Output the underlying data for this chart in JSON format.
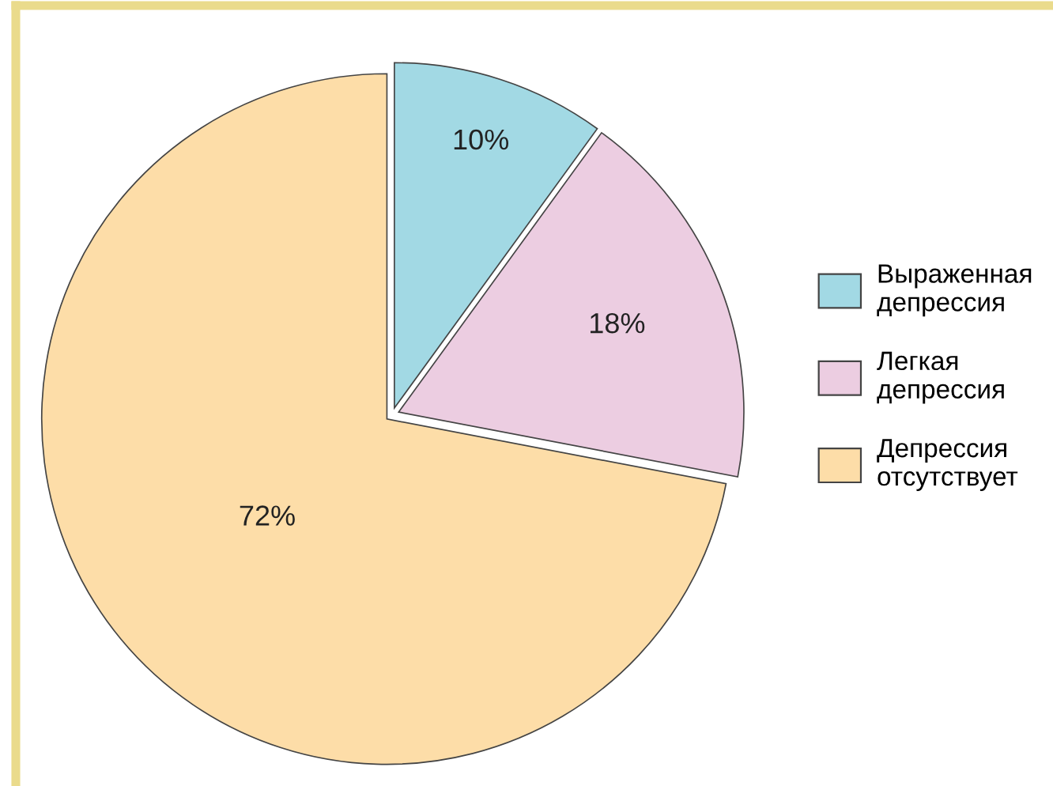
{
  "chart_data": {
    "type": "pie",
    "categories": [
      "Выраженная\nдепрессия",
      "Легкая\nдепрессия",
      "Депрессия\nотсутствует"
    ],
    "values": [
      10,
      18,
      72
    ],
    "colors": [
      "#a2d9e4",
      "#eccde1",
      "#fddda8"
    ],
    "value_labels": [
      "10%",
      "18%",
      "72%"
    ],
    "legend": "right"
  }
}
